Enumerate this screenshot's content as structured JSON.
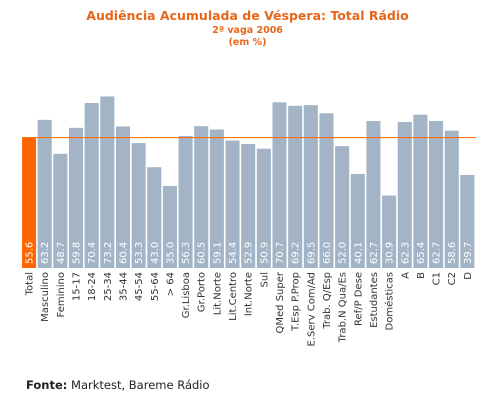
{
  "title": "Audiência Acumulada de Véspera: Total Rádio",
  "subtitle": "2ª vaga 2006",
  "unit": "(em %)",
  "source_label": "Fonte:",
  "source_text": "Marktest, Bareme Rádio",
  "colors": {
    "title": "#e8661a",
    "bar": "#a3b4c7",
    "highlight_bar": "#ff6600",
    "reference_line": "#ff6600"
  },
  "chart_data": {
    "type": "bar",
    "title": "Audiência Acumulada de Véspera: Total Rádio",
    "subtitle": "2ª vaga 2006",
    "ylabel": "(em %)",
    "ylim": [
      0,
      100
    ],
    "grid": false,
    "reference_line": 55.6,
    "highlight_category": "Total",
    "categories": [
      "Total",
      "Masculino",
      "Feminino",
      "15-17",
      "18-24",
      "25-34",
      "35-44",
      "45-54",
      "55-64",
      "> 64",
      "Gr.Lisboa",
      "Gr.Porto",
      "Lit.Norte",
      "Lit.Centro",
      "Int.Norte",
      "Sul",
      "QMed Super",
      "T.Esp P.Prop",
      "E.Serv Com/Ad",
      "Trab. Q/Esp",
      "Trab.N Qua/Es",
      "Ref/P Dese",
      "Estudantes",
      "Domésticas",
      "A",
      "B",
      "C1",
      "C2",
      "D"
    ],
    "values": [
      55.6,
      63.2,
      48.7,
      59.8,
      70.4,
      73.2,
      60.4,
      53.3,
      43.0,
      35.0,
      56.3,
      60.5,
      59.1,
      54.4,
      52.9,
      50.9,
      70.7,
      69.2,
      69.5,
      66.0,
      52.0,
      40.1,
      62.7,
      30.9,
      62.3,
      65.4,
      62.7,
      58.6,
      39.7
    ],
    "value_labels": [
      "55.6",
      "63.2",
      "48.7",
      "59.8",
      "70.4",
      "73.2",
      "60.4",
      "53.3",
      "43.0",
      "35.0",
      "56.3",
      "60.5",
      "59.1",
      "54.4",
      "52.9",
      "50.9",
      "70.7",
      "69.2",
      "69.5",
      "66.0",
      "52.0",
      "40.1",
      "62.7",
      "30.9",
      "62.3",
      "65.4",
      "62.7",
      "58.6",
      "39.7"
    ]
  }
}
